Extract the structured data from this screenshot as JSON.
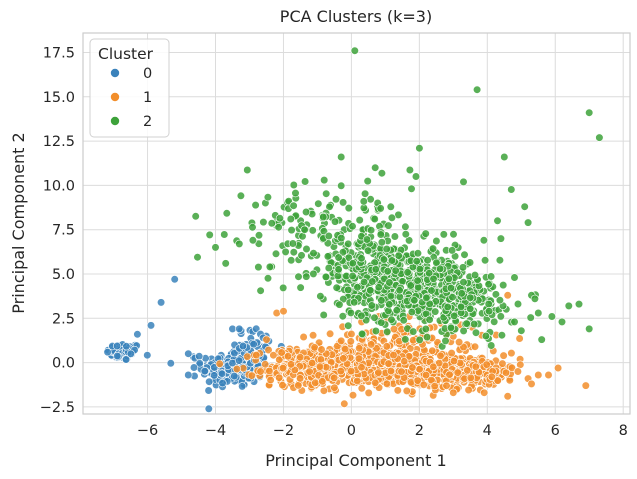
{
  "chart_data": {
    "type": "scatter",
    "title": "PCA Clusters (k=3)",
    "xlabel": "Principal Component 1",
    "ylabel": "Principal Component 2",
    "xlim": [
      -7.9,
      8.2
    ],
    "ylim": [
      -2.9,
      18.6
    ],
    "xticks": [
      -6,
      -4,
      -2,
      0,
      2,
      4,
      6,
      8
    ],
    "yticks": [
      -2.5,
      0.0,
      2.5,
      5.0,
      7.5,
      10.0,
      12.5,
      15.0,
      17.5
    ],
    "xtick_labels": [
      "−6",
      "−4",
      "−2",
      "0",
      "2",
      "4",
      "6",
      "8"
    ],
    "ytick_labels": [
      "−2.5",
      "0.0",
      "2.5",
      "5.0",
      "7.5",
      "10.0",
      "12.5",
      "15.0",
      "17.5"
    ],
    "grid": true,
    "legend": {
      "title": "Cluster",
      "placement": "top-left"
    },
    "series": [
      {
        "name": "0",
        "color": "#3a82bb",
        "clusters": [
          {
            "cx": -6.7,
            "cy": 0.6,
            "sx": 0.25,
            "sy": 0.25,
            "n": 70
          },
          {
            "cx": -3.5,
            "cy": -0.3,
            "sx": 0.45,
            "sy": 0.55,
            "n": 220
          },
          {
            "cx": -2.9,
            "cy": 0.9,
            "sx": 0.4,
            "sy": 0.5,
            "n": 40
          }
        ],
        "points": [
          [
            -5.2,
            4.7
          ],
          [
            -5.6,
            3.4
          ],
          [
            -5.9,
            2.1
          ],
          [
            -6.3,
            1.6
          ],
          [
            -4.8,
            0.5
          ],
          [
            -4.8,
            -0.7
          ],
          [
            -3.5,
            1.9
          ],
          [
            -3.3,
            1.9
          ],
          [
            -2.6,
            1.4
          ]
        ]
      },
      {
        "name": "1",
        "color": "#f28e2b",
        "clusters": [
          {
            "cx": 0.5,
            "cy": -0.2,
            "sx": 1.4,
            "sy": 0.55,
            "n": 700
          },
          {
            "cx": 3.2,
            "cy": -0.5,
            "sx": 0.9,
            "sy": 0.45,
            "n": 280
          },
          {
            "cx": -1.2,
            "cy": -0.4,
            "sx": 0.6,
            "sy": 0.5,
            "n": 160
          },
          {
            "cx": 1.5,
            "cy": 1.4,
            "sx": 1.2,
            "sy": 0.45,
            "n": 90
          }
        ],
        "points": [
          [
            -2.5,
            1.3
          ],
          [
            -2.2,
            2.8
          ],
          [
            -2.0,
            2.9
          ],
          [
            0.3,
            2.3
          ],
          [
            0.8,
            2.6
          ],
          [
            1.7,
            2.6
          ],
          [
            4.6,
            3.8
          ],
          [
            4.9,
            -0.5
          ],
          [
            5.2,
            -0.9
          ],
          [
            5.5,
            -0.7
          ],
          [
            5.8,
            -0.7
          ],
          [
            5.3,
            -1.2
          ],
          [
            6.9,
            -1.3
          ],
          [
            4.6,
            -1.9
          ],
          [
            3.0,
            -1.7
          ]
        ]
      },
      {
        "name": "2",
        "color": "#3da23a",
        "clusters": [
          {
            "cx": 1.5,
            "cy": 4.5,
            "sx": 1.0,
            "sy": 1.1,
            "n": 500
          },
          {
            "cx": 3.2,
            "cy": 3.3,
            "sx": 0.8,
            "sy": 0.9,
            "n": 180
          },
          {
            "cx": 0.0,
            "cy": 6.5,
            "sx": 1.3,
            "sy": 1.5,
            "n": 170
          },
          {
            "cx": -1.5,
            "cy": 8.0,
            "sx": 1.0,
            "sy": 1.2,
            "n": 60
          }
        ],
        "points": [
          [
            0.1,
            17.6
          ],
          [
            3.7,
            15.4
          ],
          [
            7.0,
            14.1
          ],
          [
            7.3,
            12.7
          ],
          [
            2.0,
            12.1
          ],
          [
            4.5,
            11.6
          ],
          [
            -0.3,
            11.6
          ],
          [
            0.7,
            11.0
          ],
          [
            1.9,
            10.5
          ],
          [
            -0.8,
            10.3
          ],
          [
            3.3,
            10.2
          ],
          [
            -4.0,
            6.5
          ],
          [
            -3.7,
            5.6
          ],
          [
            -2.4,
            5.4
          ],
          [
            -3.3,
            6.7
          ],
          [
            -2.9,
            6.9
          ],
          [
            4.8,
            4.8
          ],
          [
            5.3,
            3.8
          ],
          [
            5.4,
            3.6
          ],
          [
            5.5,
            2.8
          ],
          [
            5.9,
            2.6
          ],
          [
            6.2,
            2.3
          ],
          [
            6.4,
            3.2
          ],
          [
            6.7,
            3.3
          ],
          [
            7.0,
            1.9
          ],
          [
            5.6,
            1.3
          ],
          [
            5.1,
            8.8
          ],
          [
            4.8,
            2.3
          ],
          [
            5.0,
            1.8
          ],
          [
            4.4,
            7.0
          ],
          [
            3.9,
            6.9
          ],
          [
            4.3,
            8.0
          ],
          [
            5.2,
            7.9
          ]
        ]
      }
    ]
  }
}
